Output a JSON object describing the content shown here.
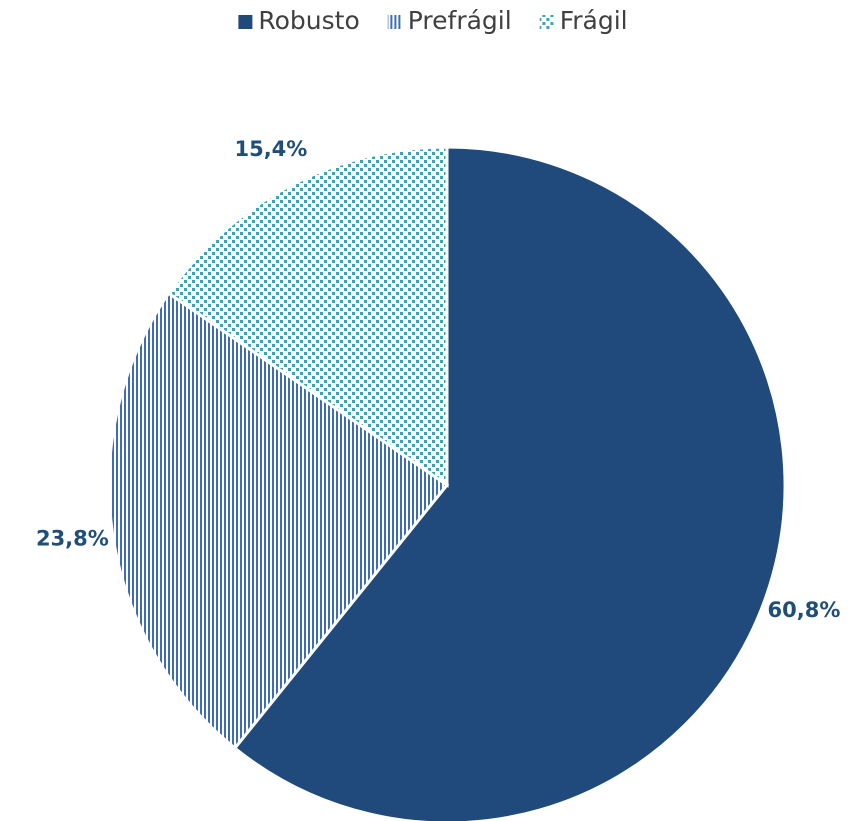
{
  "chart_data": {
    "type": "pie",
    "categories": [
      "Robusto",
      "Prefrágil",
      "Frágil"
    ],
    "values": [
      60.8,
      23.8,
      15.4
    ],
    "value_labels": [
      "60,8%",
      "23,8%",
      "15,4%"
    ],
    "colors": [
      "#1f4a7b",
      "#3e6db5",
      "#3fa3b3"
    ],
    "fill_patterns": [
      "solid",
      "vertical-lines",
      "dots"
    ],
    "legend": "top"
  }
}
